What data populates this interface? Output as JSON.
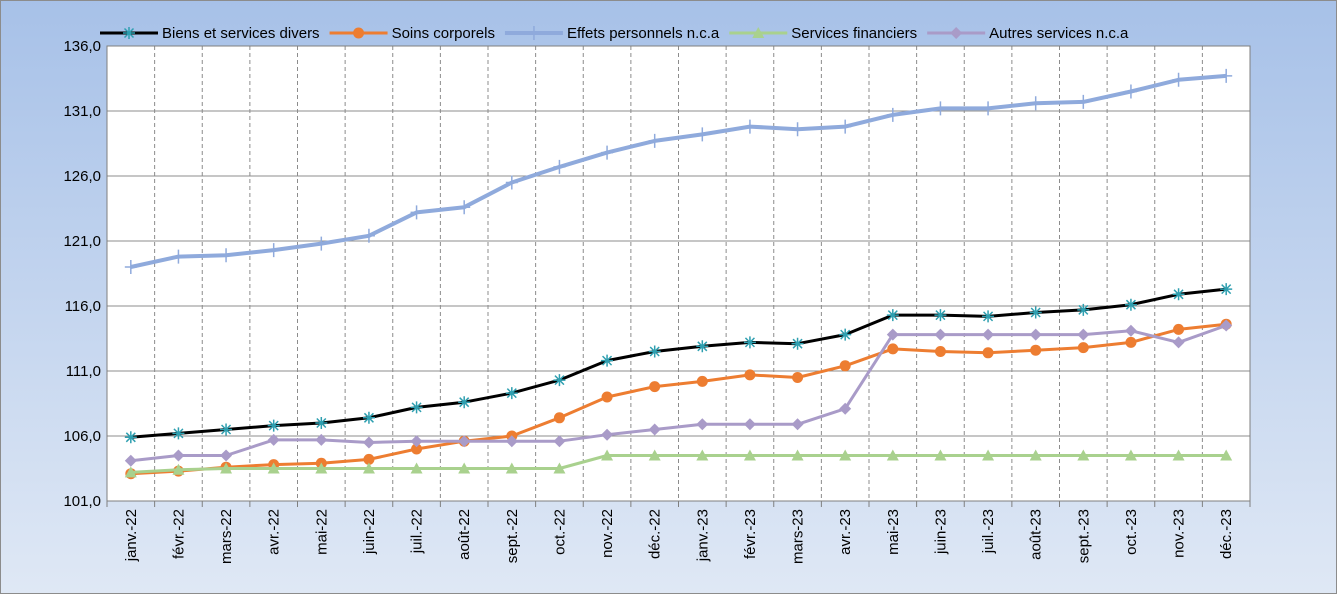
{
  "chart_data": {
    "type": "line",
    "categories": [
      "janv.-22",
      "févr.-22",
      "mars-22",
      "avr.-22",
      "mai-22",
      "juin-22",
      "juil.-22",
      "août-22",
      "sept.-22",
      "oct.-22",
      "nov.-22",
      "déc.-22",
      "janv.-23",
      "févr.-23",
      "mars-23",
      "avr.-23",
      "mai-23",
      "juin-23",
      "juil.-23",
      "août-23",
      "sept.-23",
      "oct.-23",
      "nov.-23",
      "déc.-23"
    ],
    "series": [
      {
        "name": "Biens et services divers",
        "color": "#000000",
        "marker": "asterisk",
        "marker_color": "#2e9fb0",
        "values": [
          105.9,
          106.2,
          106.5,
          106.8,
          107.0,
          107.4,
          108.2,
          108.6,
          109.3,
          110.3,
          111.8,
          112.5,
          112.9,
          113.2,
          113.1,
          113.8,
          115.3,
          115.3,
          115.2,
          115.5,
          115.7,
          116.1,
          116.9,
          117.3
        ]
      },
      {
        "name": "Soins corporels",
        "color": "#ed7d31",
        "marker": "circle",
        "marker_color": "#ed7d31",
        "values": [
          103.1,
          103.3,
          103.6,
          103.8,
          103.9,
          104.2,
          105.0,
          105.6,
          106.0,
          107.4,
          109.0,
          109.8,
          110.2,
          110.7,
          110.5,
          111.4,
          112.7,
          112.5,
          112.4,
          112.6,
          112.8,
          113.2,
          114.2,
          114.6
        ]
      },
      {
        "name": "Effets personnels n.c.a",
        "color": "#8faadc",
        "marker": "plus",
        "marker_color": "#8faadc",
        "values": [
          119.0,
          119.8,
          119.9,
          120.3,
          120.8,
          121.4,
          123.2,
          123.6,
          125.5,
          126.7,
          127.8,
          128.7,
          129.2,
          129.8,
          129.6,
          129.8,
          130.7,
          131.2,
          131.2,
          131.6,
          131.7,
          132.5,
          133.4,
          133.7
        ]
      },
      {
        "name": "Services financiers",
        "color": "#a9d18e",
        "marker": "triangle",
        "marker_color": "#a9d18e",
        "values": [
          103.2,
          103.4,
          103.5,
          103.5,
          103.5,
          103.5,
          103.5,
          103.5,
          103.5,
          103.5,
          104.5,
          104.5,
          104.5,
          104.5,
          104.5,
          104.5,
          104.5,
          104.5,
          104.5,
          104.5,
          104.5,
          104.5,
          104.5,
          104.5
        ]
      },
      {
        "name": "Autres services n.c.a",
        "color": "#a99bc8",
        "marker": "diamond",
        "marker_color": "#a99bc8",
        "values": [
          104.1,
          104.5,
          104.5,
          105.7,
          105.7,
          105.5,
          105.6,
          105.6,
          105.6,
          105.6,
          106.1,
          106.5,
          106.9,
          106.9,
          106.9,
          108.1,
          113.8,
          113.8,
          113.8,
          113.8,
          113.8,
          114.1,
          113.2,
          114.5
        ]
      }
    ],
    "ylim": [
      101,
      136
    ],
    "yticks": [
      {
        "value": 101,
        "label": "101,0"
      },
      {
        "value": 106,
        "label": "106,0"
      },
      {
        "value": 111,
        "label": "111,0"
      },
      {
        "value": 116,
        "label": "116,0"
      },
      {
        "value": 121,
        "label": "121,0"
      },
      {
        "value": 126,
        "label": "126,0"
      },
      {
        "value": 131,
        "label": "131,0"
      },
      {
        "value": 136,
        "label": "136,0"
      }
    ],
    "grid": true,
    "legend": "top"
  }
}
